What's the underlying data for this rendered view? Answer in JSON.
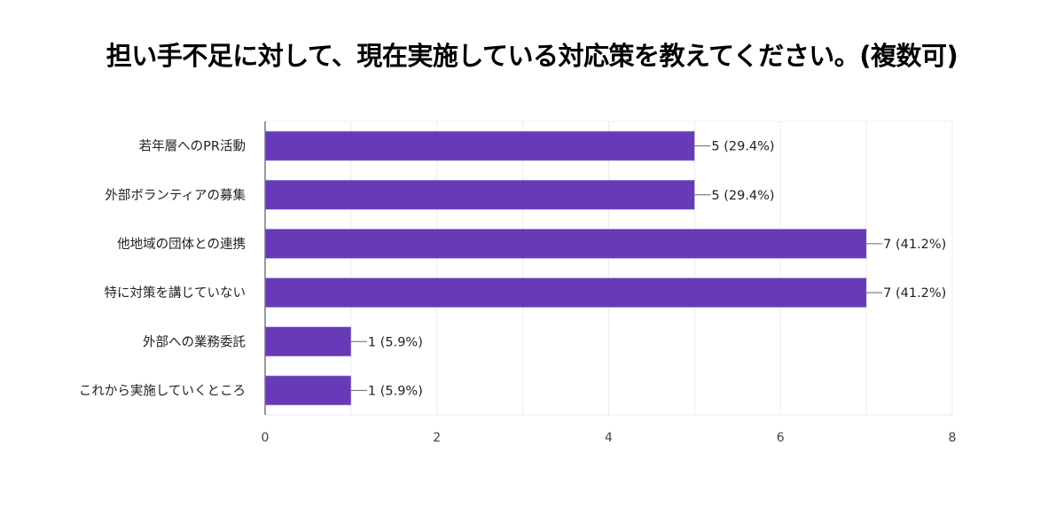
{
  "chart_data": {
    "type": "bar",
    "orientation": "horizontal",
    "title": "担い手不足に対して、現在実施している対応策を教えてください。(複数可)",
    "categories": [
      "若年層へのPR活動",
      "外部ボランティアの募集",
      "他地域の団体との連携",
      "特に対策を講じていない",
      "外部への業務委託",
      "これから実施していくところ"
    ],
    "values": [
      5,
      5,
      7,
      7,
      1,
      1
    ],
    "data_labels": [
      "5 (29.4%)",
      "5 (29.4%)",
      "7 (41.2%)",
      "7 (41.2%)",
      "1 (5.9%)",
      "1 (5.9%)"
    ],
    "xlabel": "",
    "ylabel": "",
    "xlim": [
      0,
      8
    ],
    "xticks": [
      "0",
      "2",
      "4",
      "6",
      "8"
    ],
    "grid": true,
    "bar_color": "#673ab7"
  }
}
